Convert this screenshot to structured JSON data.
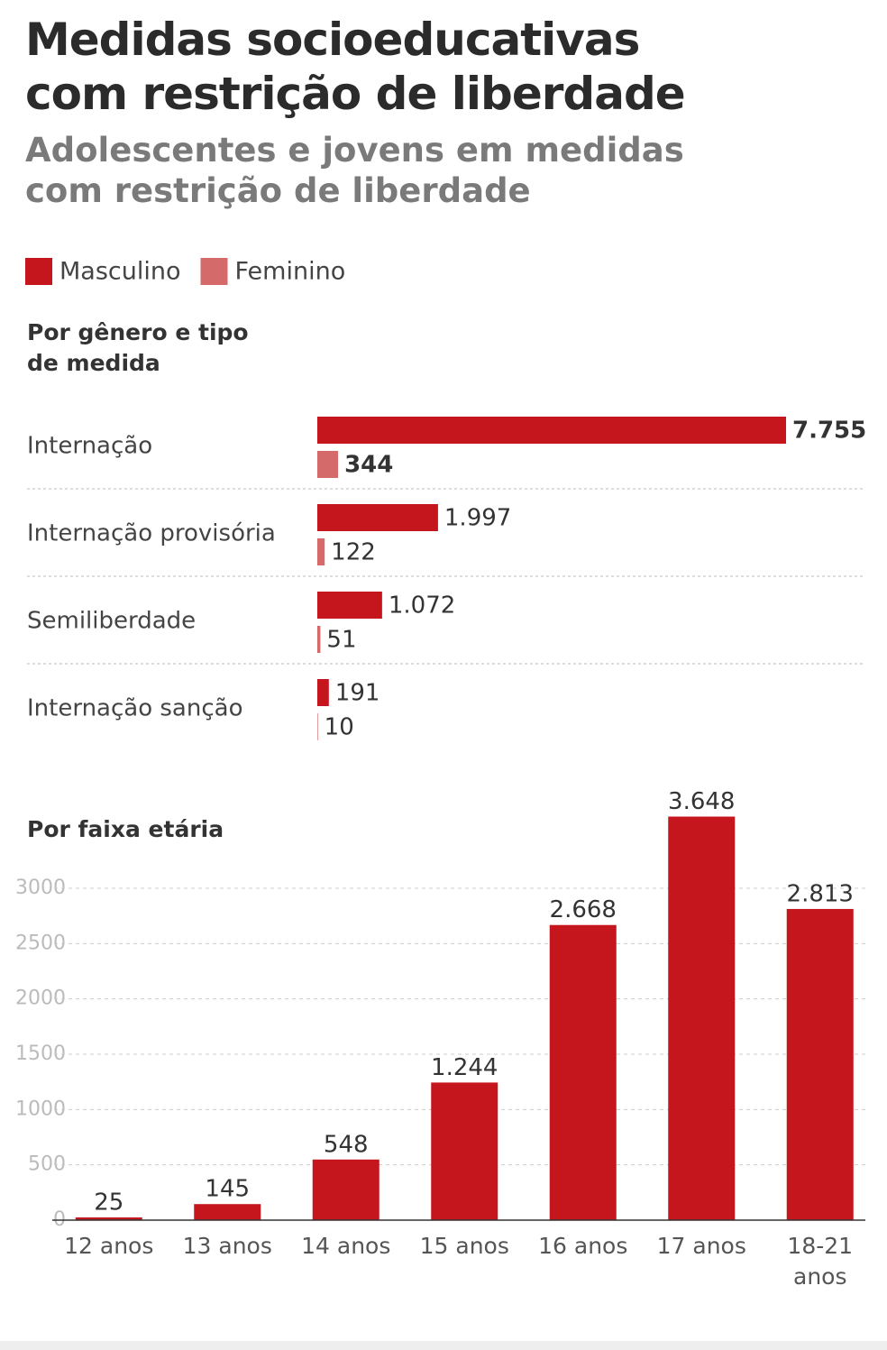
{
  "title": "Medidas socioeducativas com restrição de liberdade",
  "subtitle": "Adolescentes e jovens em medidas com restrição de liberdade",
  "chart_data": [
    {
      "type": "hbar",
      "title": "Por gênero e tipo de medida",
      "categories": [
        "Internação",
        "Internação provisória",
        "Semiliberdade",
        "Internação sanção"
      ],
      "series": [
        {
          "name": "Masculino",
          "color": "#c4161c",
          "values": [
            7755,
            1997,
            1072,
            191
          ],
          "value_labels": [
            "7.755",
            "1.997",
            "1.072",
            "191"
          ]
        },
        {
          "name": "Feminino",
          "color": "#d46a6a",
          "values": [
            344,
            122,
            51,
            10
          ],
          "value_labels": [
            "344",
            "122",
            "51",
            "10"
          ]
        }
      ],
      "xlim": [
        0,
        7755
      ],
      "legend": "top-left"
    },
    {
      "type": "bar",
      "title": "Por faixa etária",
      "categories": [
        "12 anos",
        "13 anos",
        "14 anos",
        "15 anos",
        "16 anos",
        "17 anos",
        "18-21 anos"
      ],
      "values": [
        25,
        145,
        548,
        1244,
        2668,
        3648,
        2813
      ],
      "value_labels": [
        "25",
        "145",
        "548",
        "1.244",
        "2.668",
        "3.648",
        "2.813"
      ],
      "color": "#c4161c",
      "ylim": [
        0,
        3800
      ],
      "yticks": [
        0,
        500,
        1000,
        1500,
        2000,
        2500,
        3000
      ],
      "grid": true
    }
  ]
}
